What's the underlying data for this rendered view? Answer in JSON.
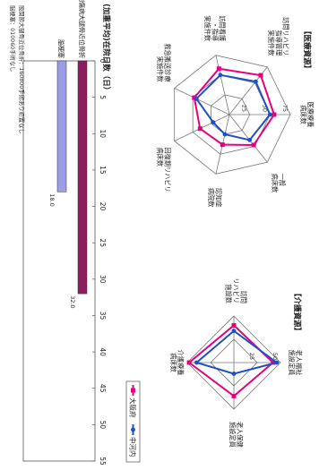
{
  "chart_data": [
    {
      "type": "radar",
      "section_label": "【医療資源】",
      "axes": [
        "医療療養\n病床数",
        "一般\n病床数",
        "認知症\n病院数",
        "回復期リハビリ\n病床数",
        "救急搬送診療\n実施件数",
        "訪問看護\n・指導\n実施件数",
        "訪問リハビリ\n指導管理\n実施件数"
      ],
      "rlim": [
        0,
        75
      ],
      "r_ticks": [
        25,
        50,
        75
      ],
      "series": [
        {
          "name": "大阪府",
          "color": "#e6007e",
          "values": [
            55,
            48,
            38,
            40,
            48,
            58,
            62
          ]
        },
        {
          "name": "中河内",
          "color": "#1f4fc6",
          "values": [
            50,
            40,
            25,
            22,
            45,
            50,
            52
          ]
        }
      ]
    },
    {
      "type": "radar",
      "section_label": "【介護資源】",
      "axes": [
        "老人福祉\n施設定員",
        "老人保健\n施設定員",
        "介護療養\n病床数",
        "訪問\nリハビリ\n施設数"
      ],
      "rlim": [
        0,
        50
      ],
      "r_ticks": [
        25,
        50
      ],
      "series": [
        {
          "name": "大阪府",
          "color": "#e6007e",
          "values": [
            42,
            36,
            48,
            40
          ]
        },
        {
          "name": "中河内",
          "color": "#1f4fc6",
          "values": [
            46,
            12,
            40,
            34
          ]
        }
      ]
    },
    {
      "type": "bar",
      "orientation": "horizontal",
      "title": "(加重平均)在院日数（日）",
      "categories": [
        "副傷病大腿骨近位骨折",
        "脳梗塞"
      ],
      "values": [
        32.0,
        18.0
      ],
      "value_labels": [
        "32.0",
        "18.0"
      ],
      "colors": [
        "#8a1e5c",
        "#9b9ee6"
      ],
      "xlim": [
        0,
        55
      ],
      "x_ticks": [
        0,
        5,
        10,
        15,
        20,
        25,
        30,
        35,
        40,
        45,
        50,
        55
      ],
      "notes": [
        "股関節大腿骨近位骨折：160800手術あり初置なし",
        "脳梗塞：010060手術なし"
      ]
    }
  ],
  "legend": [
    {
      "label": "大阪府",
      "color": "#e6007e"
    },
    {
      "label": "中河内",
      "color": "#1f4fc6"
    }
  ]
}
